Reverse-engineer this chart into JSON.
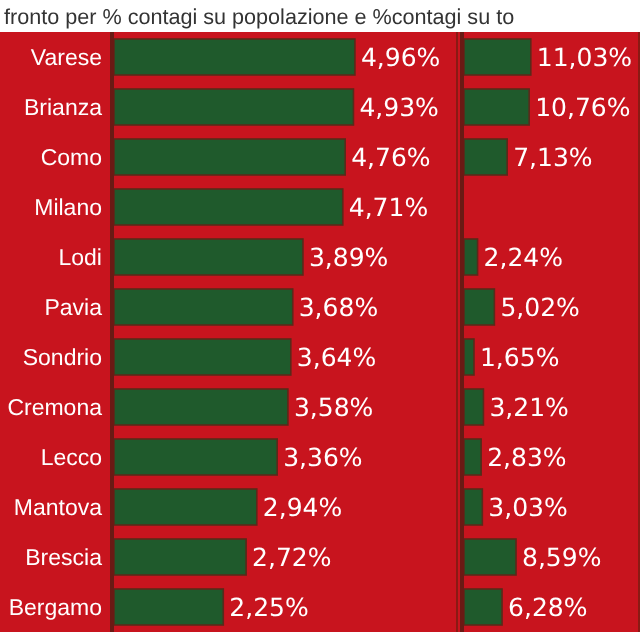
{
  "chart_data": [
    {
      "type": "bar",
      "orientation": "horizontal",
      "title": "fronto per  % contagi su popolazione e %contagi su to",
      "categories": [
        "Varese",
        "Brianza",
        "Como",
        "Milano",
        "Lodi",
        "Pavia",
        "Sondrio",
        "Cremona",
        "Lecco",
        "Mantova",
        "Brescia",
        "Bergamo"
      ],
      "values": [
        4.96,
        4.93,
        4.76,
        4.71,
        3.89,
        3.68,
        3.64,
        3.58,
        3.36,
        2.94,
        2.72,
        2.25
      ],
      "value_labels": [
        "4,96%",
        "4,93%",
        "4,76%",
        "4,71%",
        "3,89%",
        "3,68%",
        "3,64%",
        "3,58%",
        "3,36%",
        "2,94%",
        "2,72%",
        "2,25%"
      ],
      "color": "#1f5a2c",
      "xlim": [
        0,
        7
      ],
      "tick_labels": "y"
    },
    {
      "type": "bar",
      "orientation": "horizontal",
      "categories": [
        null,
        null,
        null,
        null,
        null,
        null,
        null,
        null,
        null,
        null,
        null,
        null
      ],
      "values": [
        11.03,
        10.76,
        7.13,
        null,
        2.24,
        5.02,
        1.65,
        3.21,
        2.83,
        3.03,
        8.59,
        6.28
      ],
      "value_labels": [
        "11,03%",
        "10,76%",
        "7,13%",
        null,
        "2,24%",
        "5,02%",
        "1,65%",
        "3,21%",
        "2,83%",
        "3,03%",
        "8,59%",
        "6,28%"
      ],
      "color": "#1f5a2c",
      "xlim": [
        0,
        28.4
      ],
      "tick_labels": false
    }
  ]
}
